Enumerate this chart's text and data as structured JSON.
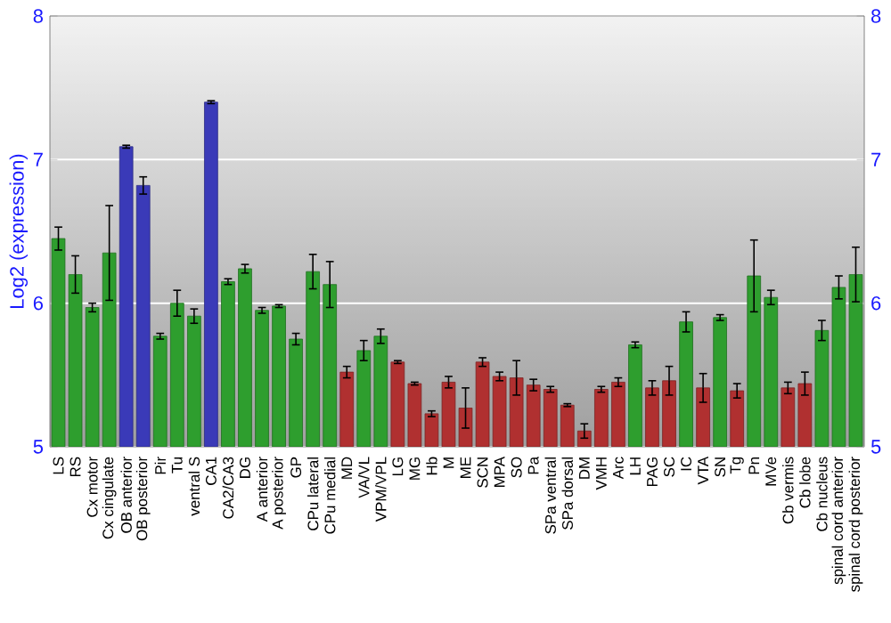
{
  "chart_data": {
    "type": "bar",
    "ylabel": "Log2 (expression)",
    "categories": [
      "LS",
      "RS",
      "Cx motor",
      "Cx cingulate",
      "OB anterior",
      "OB posterior",
      "Pir",
      "Tu",
      "ventral S",
      "CA1",
      "CA2/CA3",
      "DG",
      "A anterior",
      "A posterior",
      "GP",
      "CPu lateral",
      "CPu medial",
      "MD",
      "VA/VL",
      "VPM/VPL",
      "LG",
      "MG",
      "Hb",
      "M",
      "ME",
      "SCN",
      "MPA",
      "SO",
      "Pa",
      "SPa ventral",
      "SPa dorsal",
      "DM",
      "VMH",
      "Arc",
      "LH",
      "PAG",
      "SC",
      "IC",
      "VTA",
      "SN",
      "Tg",
      "Pn",
      "MVe",
      "Cb vermis",
      "Cb lobe",
      "Cb nucleus",
      "spinal cord anterior",
      "spinal cord posterior"
    ],
    "values": [
      6.45,
      6.2,
      5.97,
      6.35,
      7.09,
      6.82,
      5.77,
      6.0,
      5.91,
      7.4,
      6.15,
      6.24,
      5.95,
      5.98,
      5.75,
      6.22,
      6.13,
      5.52,
      5.67,
      5.77,
      5.59,
      5.44,
      5.23,
      5.45,
      5.27,
      5.59,
      5.49,
      5.48,
      5.43,
      5.4,
      5.29,
      5.11,
      5.4,
      5.45,
      5.71,
      5.41,
      5.46,
      5.87,
      5.41,
      5.9,
      5.39,
      6.19,
      6.04,
      5.41,
      5.44,
      5.81,
      6.11,
      6.2
    ],
    "errors": [
      0.08,
      0.13,
      0.03,
      0.33,
      0.01,
      0.06,
      0.02,
      0.09,
      0.05,
      0.01,
      0.02,
      0.03,
      0.02,
      0.01,
      0.04,
      0.12,
      0.16,
      0.04,
      0.07,
      0.05,
      0.01,
      0.01,
      0.02,
      0.04,
      0.14,
      0.03,
      0.03,
      0.12,
      0.04,
      0.02,
      0.01,
      0.05,
      0.02,
      0.03,
      0.02,
      0.05,
      0.1,
      0.07,
      0.1,
      0.02,
      0.05,
      0.25,
      0.05,
      0.04,
      0.08,
      0.07,
      0.08,
      0.19
    ],
    "colors": [
      "#2e9e2e",
      "#2e9e2e",
      "#2e9e2e",
      "#2e9e2e",
      "#3a3ab8",
      "#3a3ab8",
      "#2e9e2e",
      "#2e9e2e",
      "#2e9e2e",
      "#3a3ab8",
      "#2e9e2e",
      "#2e9e2e",
      "#2e9e2e",
      "#2e9e2e",
      "#2e9e2e",
      "#2e9e2e",
      "#2e9e2e",
      "#b03030",
      "#2e9e2e",
      "#2e9e2e",
      "#b03030",
      "#b03030",
      "#b03030",
      "#b03030",
      "#b03030",
      "#b03030",
      "#b03030",
      "#b03030",
      "#b03030",
      "#b03030",
      "#b03030",
      "#b03030",
      "#b03030",
      "#b03030",
      "#2e9e2e",
      "#b03030",
      "#b03030",
      "#2e9e2e",
      "#b03030",
      "#2e9e2e",
      "#b03030",
      "#2e9e2e",
      "#2e9e2e",
      "#b03030",
      "#b03030",
      "#2e9e2e",
      "#2e9e2e",
      "#2e9e2e"
    ],
    "ylim": [
      5,
      8
    ],
    "yticks": [
      5,
      6,
      7,
      8
    ],
    "y2lim": [
      5,
      8
    ],
    "y2ticks": [
      5,
      6,
      7,
      8
    ],
    "grid": "y"
  }
}
